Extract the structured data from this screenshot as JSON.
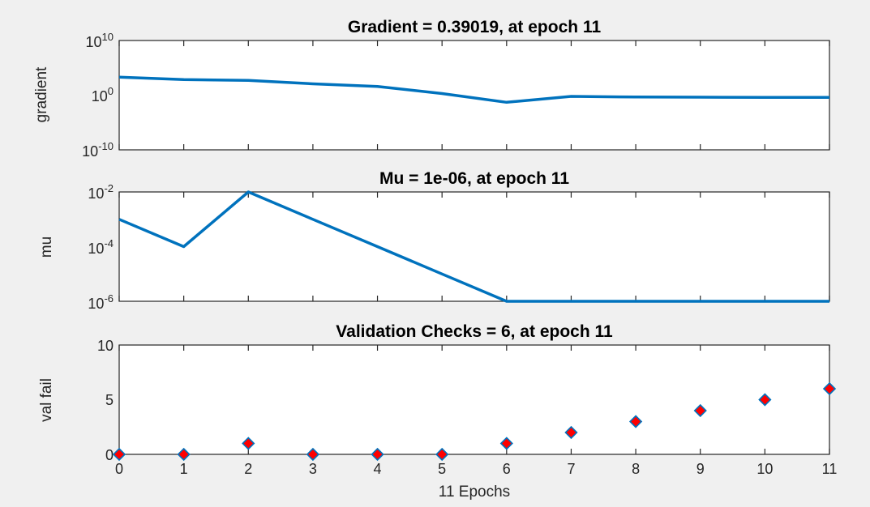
{
  "chart_data": [
    {
      "type": "line",
      "title": "Gradient = 0.39019, at epoch 11",
      "ylabel": "gradient",
      "yscale": "log",
      "ylim": [
        1e-10,
        10000000000.0
      ],
      "yticks": [
        {
          "base": "10",
          "exp": "-10"
        },
        {
          "base": "10",
          "exp": "0"
        },
        {
          "base": "10",
          "exp": "10"
        }
      ],
      "x": [
        0,
        1,
        2,
        3,
        4,
        5,
        6,
        7,
        8,
        9,
        10,
        11
      ],
      "series": [
        {
          "values": [
            2000,
            700,
            500,
            120,
            40,
            2,
            0.05,
            0.6,
            0.45,
            0.42,
            0.4,
            0.39019
          ],
          "color": "#0072bd"
        }
      ],
      "color": "#0072bd"
    },
    {
      "type": "line",
      "title": "Mu = 1e-06, at epoch 11",
      "ylabel": "mu",
      "yscale": "log",
      "ylim": [
        1e-06,
        0.01
      ],
      "yticks": [
        {
          "base": "10",
          "exp": "-6"
        },
        {
          "base": "10",
          "exp": "-4"
        },
        {
          "base": "10",
          "exp": "-2"
        }
      ],
      "x": [
        0,
        1,
        2,
        3,
        4,
        5,
        6,
        7,
        8,
        9,
        10,
        11
      ],
      "series": [
        {
          "values": [
            0.001,
            0.0001,
            0.01,
            0.001,
            0.0001,
            1e-05,
            1e-06,
            1e-06,
            1e-06,
            1e-06,
            1e-06,
            1e-06
          ],
          "color": "#0072bd"
        }
      ],
      "color": "#0072bd"
    },
    {
      "type": "scatter",
      "title": "Validation Checks = 6, at epoch 11",
      "ylabel": "val fail",
      "xlabel": "11 Epochs",
      "ylim": [
        0,
        10
      ],
      "yticks": [
        "0",
        "5",
        "10"
      ],
      "xticks": [
        "0",
        "1",
        "2",
        "3",
        "4",
        "5",
        "6",
        "7",
        "8",
        "9",
        "10",
        "11"
      ],
      "x": [
        0,
        1,
        2,
        3,
        4,
        5,
        6,
        7,
        8,
        9,
        10,
        11
      ],
      "series": [
        {
          "values": [
            0,
            0,
            1,
            0,
            0,
            0,
            1,
            2,
            3,
            4,
            5,
            6
          ],
          "marker": "diamond",
          "face_color": "#ff0000",
          "edge_color": "#0072bd"
        }
      ]
    }
  ]
}
